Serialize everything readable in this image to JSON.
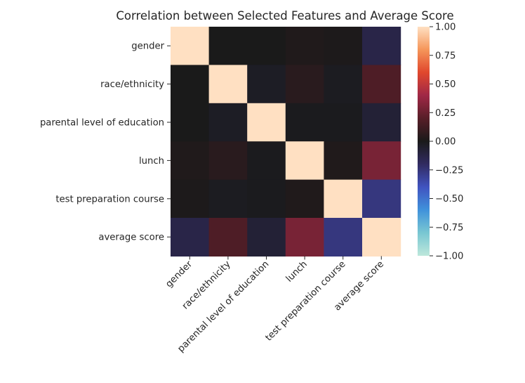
{
  "chart_data": {
    "type": "heatmap",
    "title": "Correlation between Selected Features and Average Score",
    "row_labels": [
      "gender",
      "race/ethnicity",
      "parental level of education",
      "lunch",
      "test preparation course",
      "average score"
    ],
    "col_labels": [
      "gender",
      "race/ethnicity",
      "parental level of education",
      "lunch",
      "test preparation course",
      "average score"
    ],
    "values": [
      [
        1.0,
        -0.0,
        0.0,
        0.02,
        0.01,
        -0.13
      ],
      [
        -0.0,
        1.0,
        -0.03,
        0.05,
        -0.02,
        0.17
      ],
      [
        0.0,
        -0.03,
        1.0,
        -0.01,
        -0.01,
        -0.08
      ],
      [
        0.02,
        0.05,
        -0.01,
        1.0,
        0.02,
        0.29
      ],
      [
        0.01,
        -0.02,
        -0.01,
        0.02,
        1.0,
        -0.26
      ],
      [
        -0.13,
        0.17,
        -0.08,
        0.29,
        -0.26,
        1.0
      ]
    ],
    "colormap": "icefire",
    "colorbar": {
      "vmin": -1.0,
      "vmax": 1.0,
      "ticks": [
        1.0,
        0.75,
        0.5,
        0.25,
        0.0,
        -0.25,
        -0.5,
        -0.75,
        -1.0
      ],
      "tick_labels": [
        "1.00",
        "0.75",
        "0.50",
        "0.25",
        "0.00",
        "−0.25",
        "−0.50",
        "−0.75",
        "−1.00"
      ]
    },
    "grid": false,
    "xlabel": "",
    "ylabel": ""
  }
}
